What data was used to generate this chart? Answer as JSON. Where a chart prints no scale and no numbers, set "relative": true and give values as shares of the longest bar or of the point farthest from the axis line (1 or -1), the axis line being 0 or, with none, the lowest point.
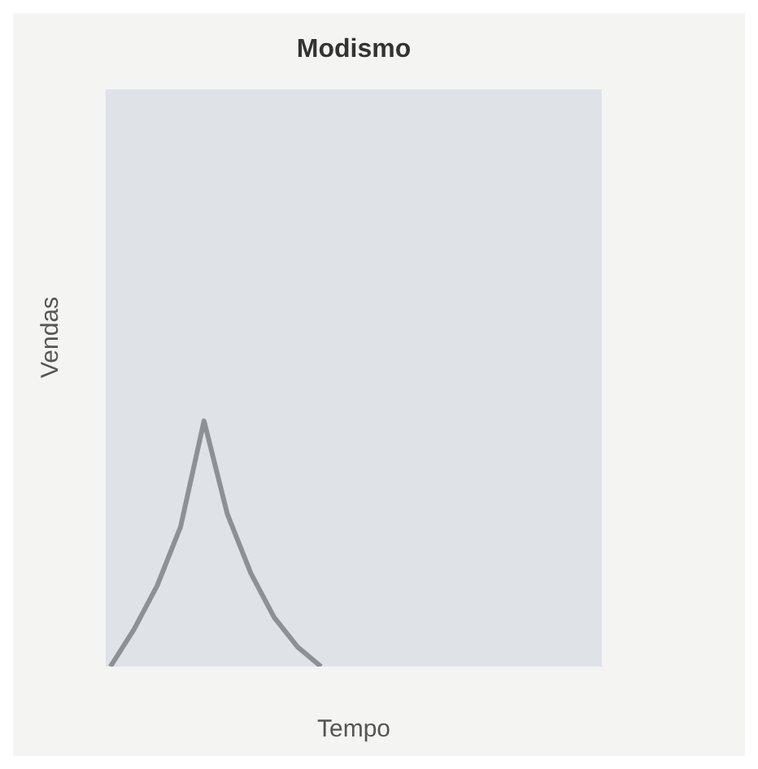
{
  "chart_data": {
    "type": "line",
    "title": "Modismo",
    "xlabel": "Tempo",
    "ylabel": "Vendas",
    "relative": true,
    "categories": [
      null,
      null,
      null,
      null,
      null,
      null,
      null,
      null,
      null,
      null,
      null,
      null,
      null,
      null,
      null,
      null,
      null,
      null,
      null,
      null,
      null,
      null
    ],
    "series": [
      {
        "color": "#8e9194",
        "values": [
          0,
          0.15,
          0.33,
          0.57,
          1,
          0.62,
          0.38,
          0.2,
          0.08,
          0,
          null,
          null,
          null,
          null,
          null,
          null,
          null,
          null,
          null,
          null,
          null,
          null
        ]
      }
    ],
    "marker": "none"
  }
}
